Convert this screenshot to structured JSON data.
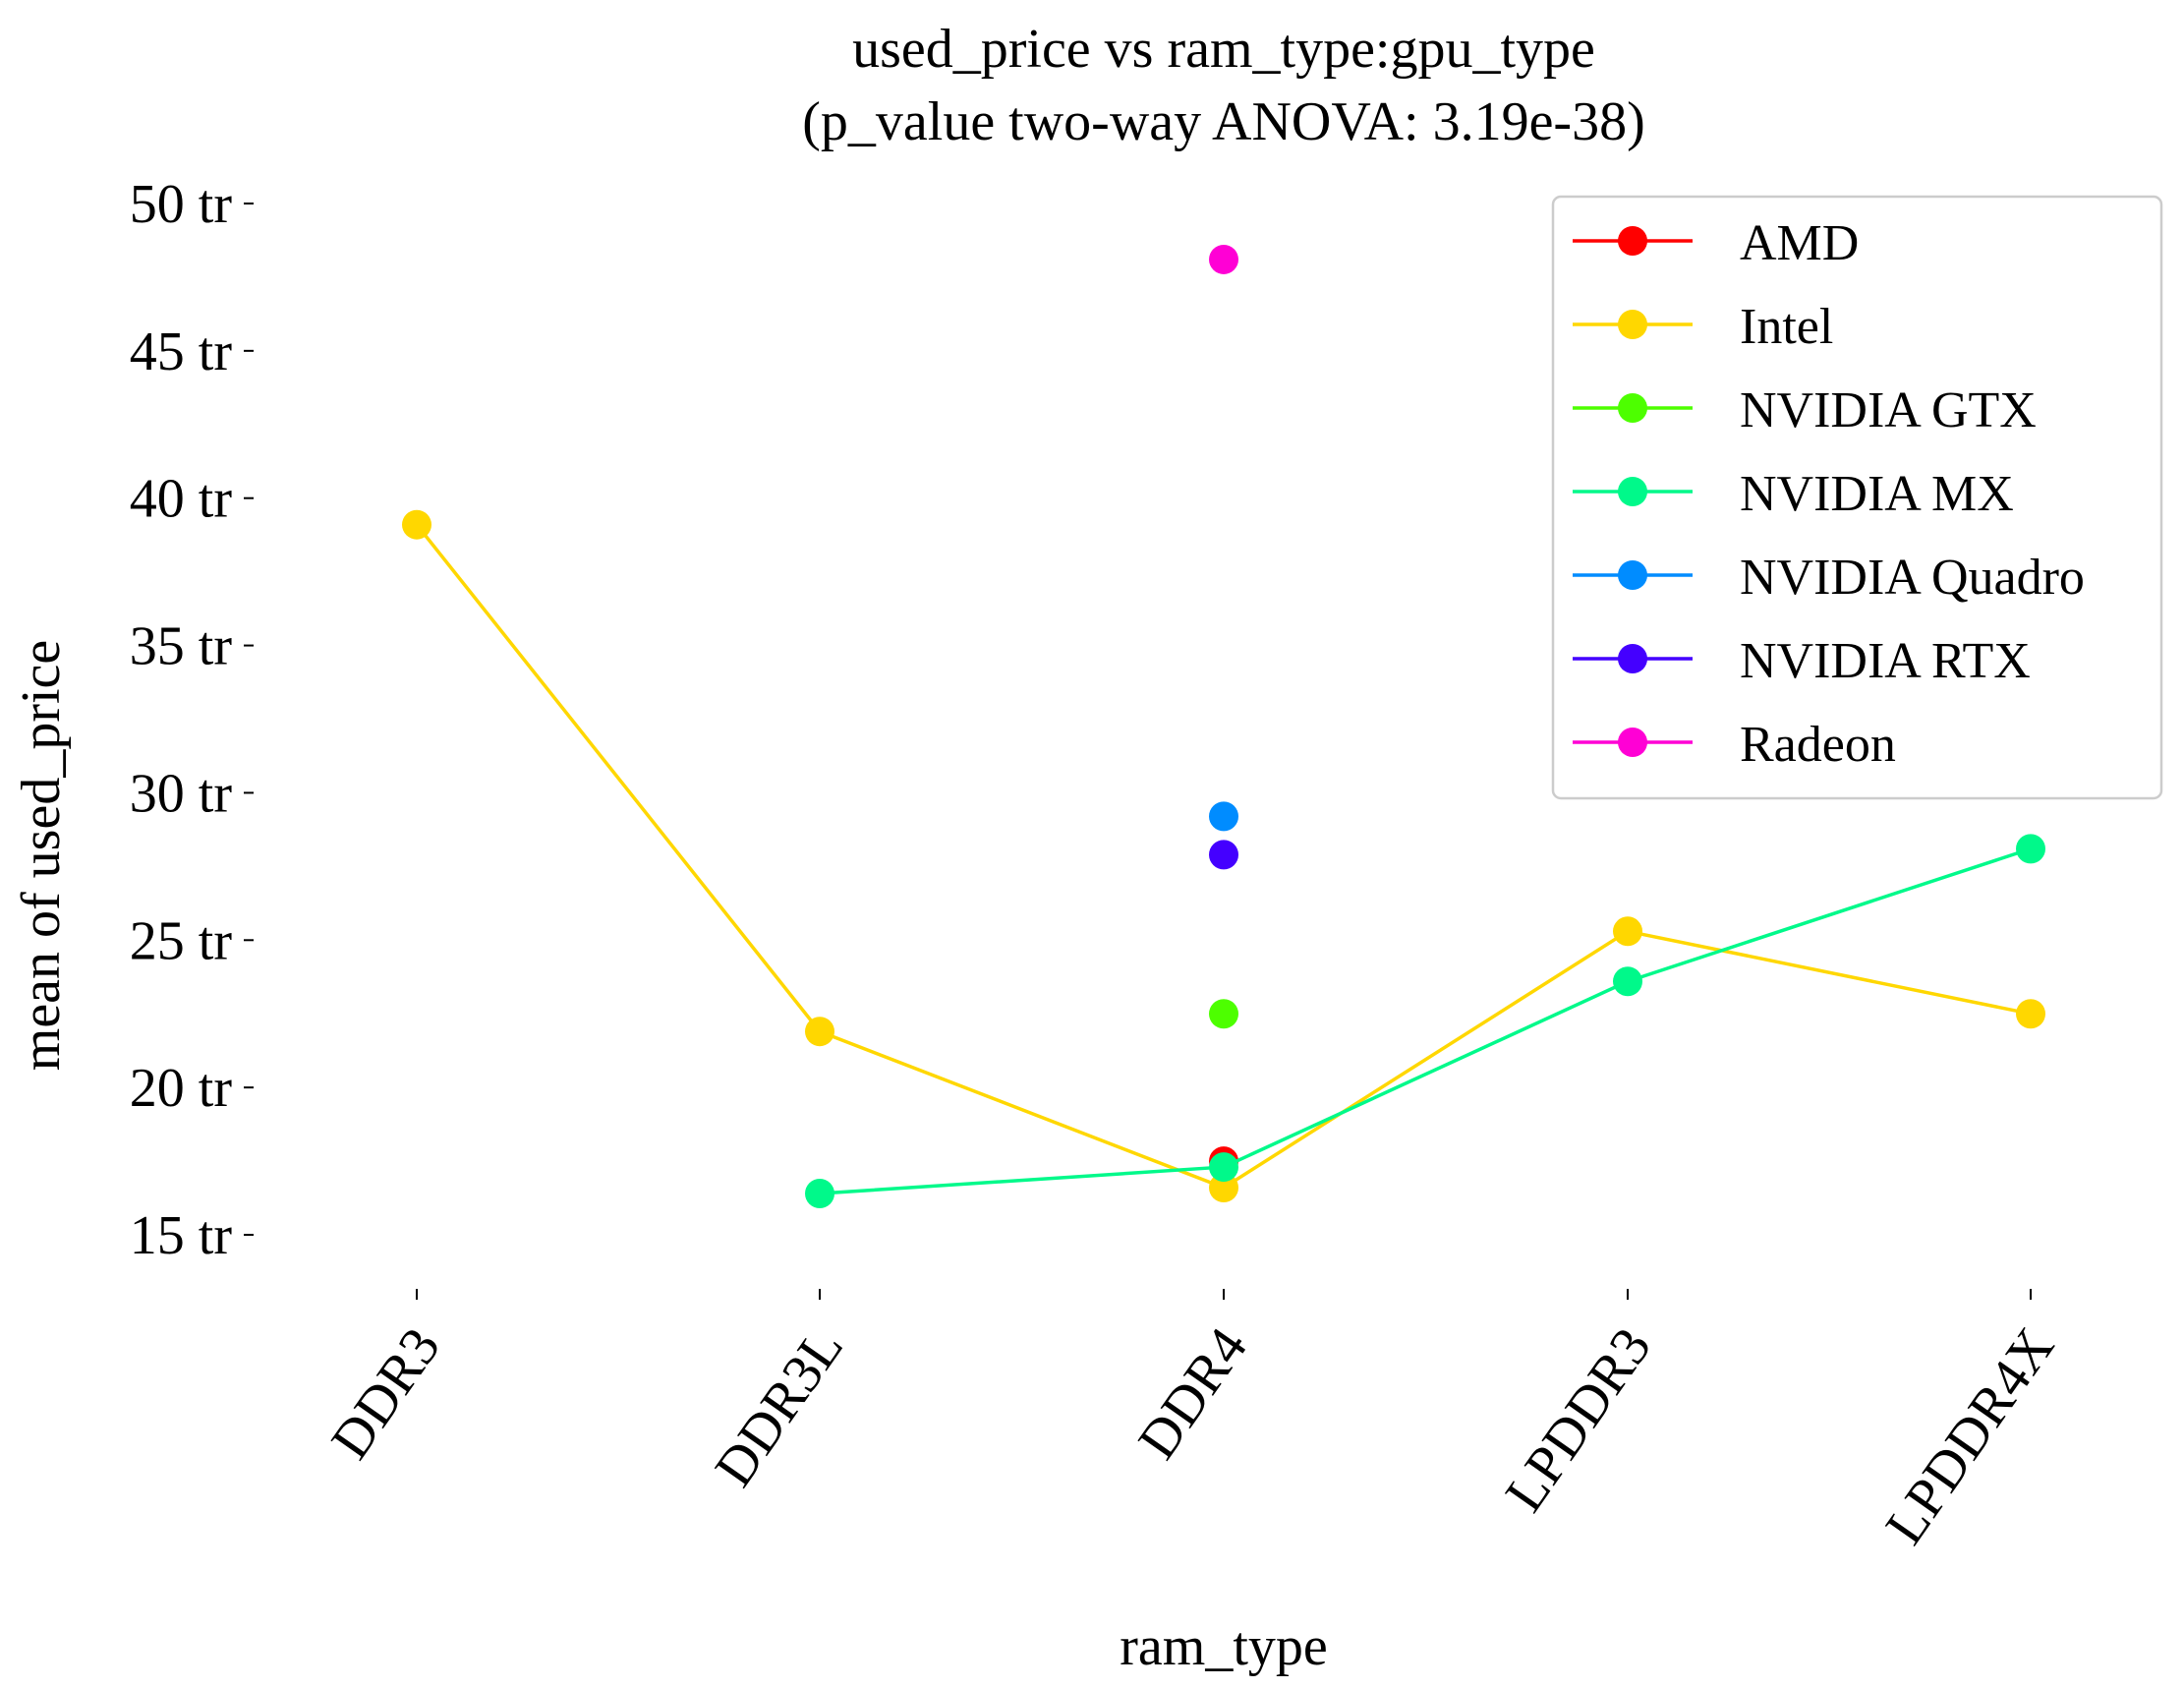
{
  "chart_data": {
    "type": "line",
    "title": "used_price vs ram_type:gpu_type",
    "subtitle": "(p_value two-way ANOVA: 3.19e-38)",
    "xlabel": "ram_type",
    "ylabel": "mean of used_price",
    "categories": [
      "DDR3",
      "DDR3L",
      "DDR4",
      "LPDDR3",
      "LPDDR4X"
    ],
    "ylim": [
      13.5,
      51
    ],
    "y_ticks": [
      {
        "value": 15,
        "label": "15 tr"
      },
      {
        "value": 20,
        "label": "20 tr"
      },
      {
        "value": 25,
        "label": "25 tr"
      },
      {
        "value": 30,
        "label": "30 tr"
      },
      {
        "value": 35,
        "label": "35 tr"
      },
      {
        "value": 40,
        "label": "40 tr"
      },
      {
        "value": 45,
        "label": "45 tr"
      },
      {
        "value": 50,
        "label": "50 tr"
      }
    ],
    "grid": false,
    "legend_position": "top-right",
    "series": [
      {
        "name": "AMD",
        "color": "#ff0000",
        "values": [
          null,
          null,
          17.5,
          null,
          null
        ]
      },
      {
        "name": "Intel",
        "color": "#ffd700",
        "values": [
          39.1,
          21.9,
          16.6,
          25.3,
          22.5
        ]
      },
      {
        "name": "NVIDIA GTX",
        "color": "#4dff00",
        "values": [
          null,
          null,
          22.5,
          null,
          null
        ]
      },
      {
        "name": "NVIDIA MX",
        "color": "#00f98a",
        "values": [
          null,
          16.4,
          17.3,
          23.6,
          28.1
        ]
      },
      {
        "name": "NVIDIA Quadro",
        "color": "#008cff",
        "values": [
          null,
          null,
          29.2,
          null,
          null
        ]
      },
      {
        "name": "NVIDIA RTX",
        "color": "#4400ff",
        "values": [
          null,
          null,
          27.9,
          null,
          null
        ]
      },
      {
        "name": "Radeon",
        "color": "#ff00d5",
        "values": [
          null,
          null,
          48.1,
          null,
          null
        ]
      }
    ]
  }
}
